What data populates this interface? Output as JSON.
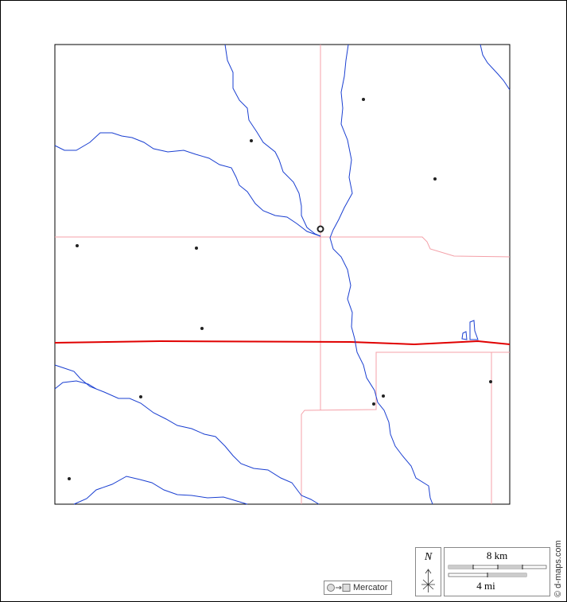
{
  "projection": {
    "label": "Mercator",
    "icon": "circle-to-square-icon"
  },
  "north": {
    "label": "N"
  },
  "scale": {
    "km_label": "8 km",
    "mi_label": "4 mi"
  },
  "credit": "© d-maps.com",
  "colors": {
    "river": "#1a3fd1",
    "state_border": "#e00000",
    "county_border": "#f4a0a8",
    "place": "#222222"
  }
}
